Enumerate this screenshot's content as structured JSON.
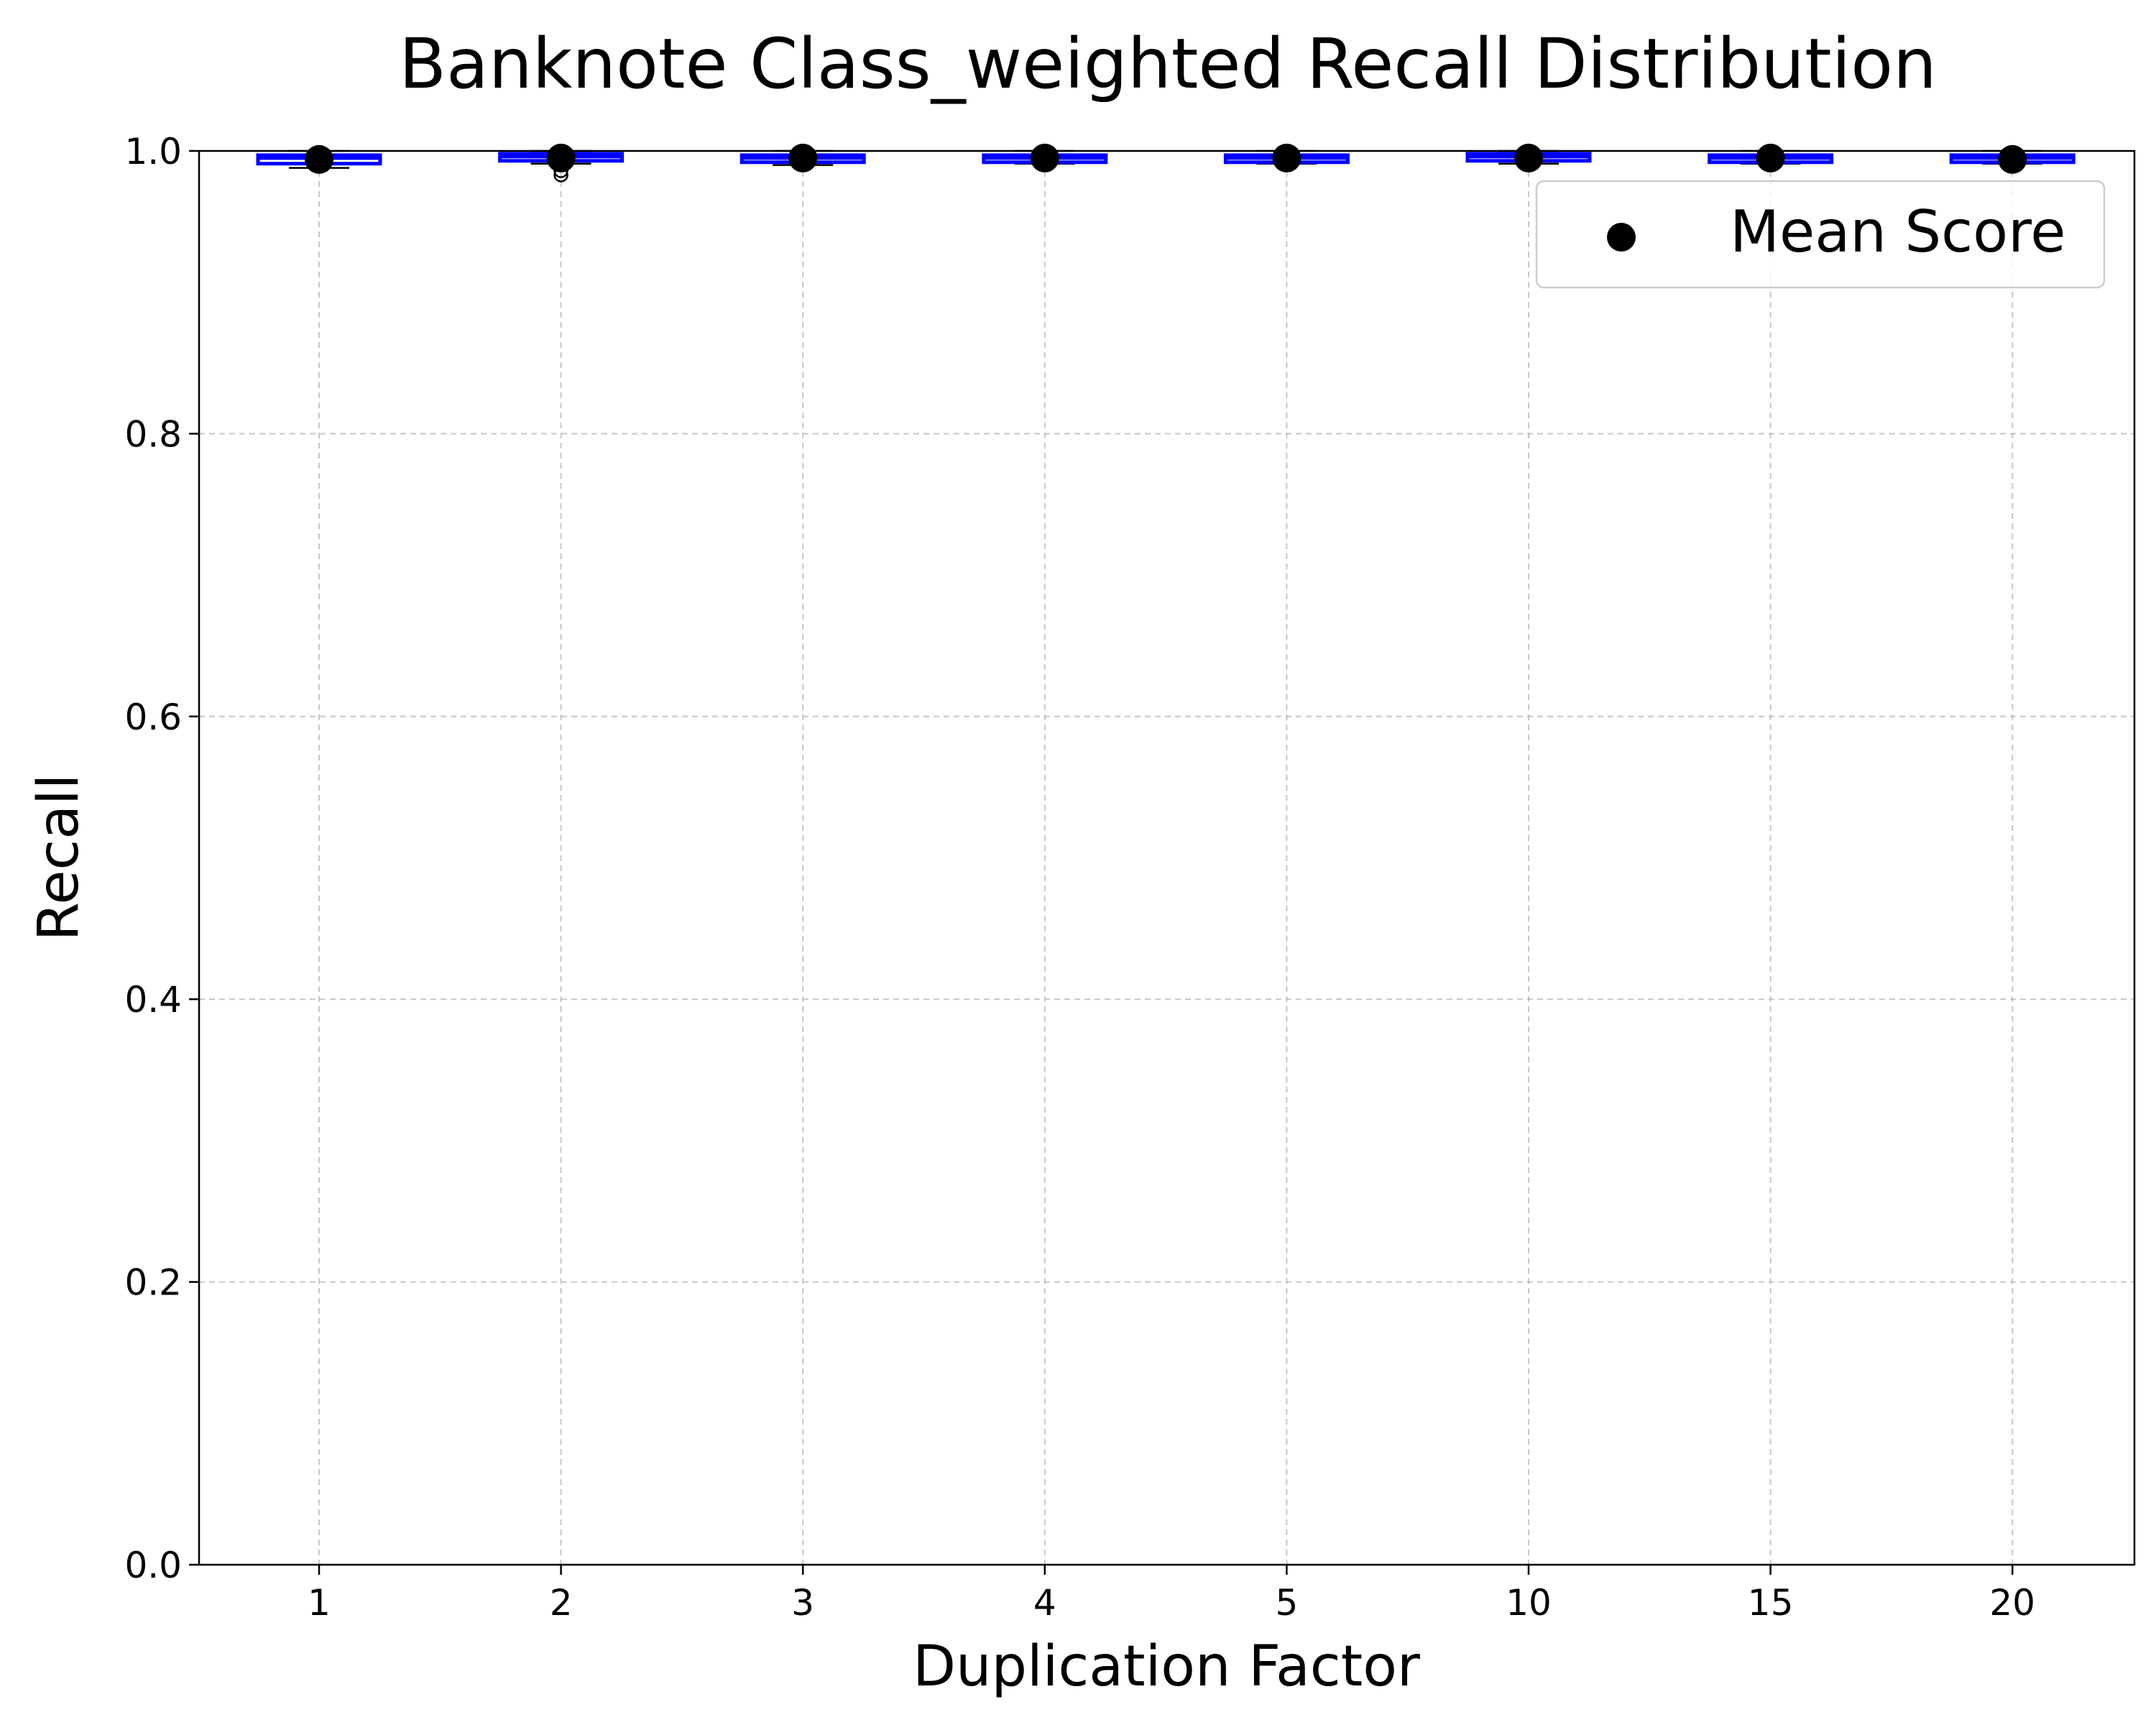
{
  "chart_data": {
    "type": "box",
    "title": "Banknote Class_weighted Recall Distribution",
    "xlabel": "Duplication Factor",
    "ylabel": "Recall",
    "categories": [
      "1",
      "2",
      "3",
      "4",
      "5",
      "10",
      "15",
      "20"
    ],
    "ylim": [
      0.0,
      1.0
    ],
    "yticks": [
      "0.0",
      "0.2",
      "0.4",
      "0.6",
      "0.8",
      "1.0"
    ],
    "grid": true,
    "legend": {
      "placement": "top-right",
      "entries": [
        "Mean Score"
      ]
    },
    "boxes": [
      {
        "category": "1",
        "whisker_low": 0.988,
        "q1": 0.991,
        "median": 0.995,
        "q3": 0.997,
        "whisker_high": 1.0,
        "mean": 0.994,
        "outliers": []
      },
      {
        "category": "2",
        "whisker_low": 0.991,
        "q1": 0.993,
        "median": 0.996,
        "q3": 0.998,
        "whisker_high": 1.0,
        "mean": 0.995,
        "outliers": [
          0.983,
          0.986
        ]
      },
      {
        "category": "3",
        "whisker_low": 0.99,
        "q1": 0.992,
        "median": 0.995,
        "q3": 0.997,
        "whisker_high": 1.0,
        "mean": 0.995,
        "outliers": []
      },
      {
        "category": "4",
        "whisker_low": 0.991,
        "q1": 0.992,
        "median": 0.995,
        "q3": 0.997,
        "whisker_high": 1.0,
        "mean": 0.995,
        "outliers": []
      },
      {
        "category": "5",
        "whisker_low": 0.991,
        "q1": 0.992,
        "median": 0.995,
        "q3": 0.997,
        "whisker_high": 1.0,
        "mean": 0.995,
        "outliers": []
      },
      {
        "category": "10",
        "whisker_low": 0.991,
        "q1": 0.993,
        "median": 0.996,
        "q3": 0.998,
        "whisker_high": 1.0,
        "mean": 0.995,
        "outliers": []
      },
      {
        "category": "15",
        "whisker_low": 0.991,
        "q1": 0.992,
        "median": 0.995,
        "q3": 0.997,
        "whisker_high": 1.0,
        "mean": 0.995,
        "outliers": []
      },
      {
        "category": "20",
        "whisker_low": 0.991,
        "q1": 0.992,
        "median": 0.995,
        "q3": 0.997,
        "whisker_high": 1.0,
        "mean": 0.994,
        "outliers": []
      }
    ],
    "colors": {
      "box_edge": "#0000ff",
      "median": "#0000ff",
      "mean_marker": "#000000",
      "whisker": "#000000"
    }
  }
}
